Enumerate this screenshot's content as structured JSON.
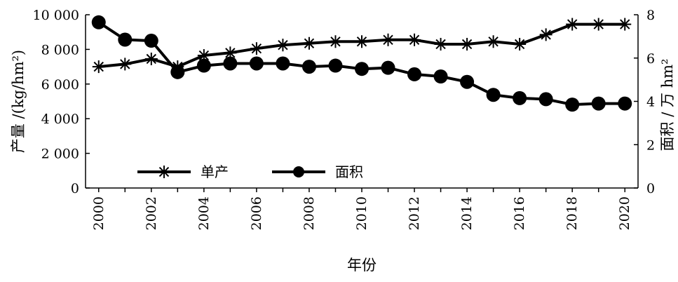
{
  "chart_data": {
    "type": "line",
    "xlabel": "年份",
    "ylabel_left": "产量 /(kg/hm²)",
    "ylabel_right": "面积 / 万 hm²",
    "x": [
      2000,
      2001,
      2002,
      2003,
      2004,
      2005,
      2006,
      2007,
      2008,
      2009,
      2010,
      2011,
      2012,
      2013,
      2014,
      2015,
      2016,
      2017,
      2018,
      2019,
      2020
    ],
    "x_tick_labels": [
      "2000",
      "2002",
      "2004",
      "2006",
      "2008",
      "2010",
      "2012",
      "2014",
      "2016",
      "2018",
      "2020"
    ],
    "ylim_left": [
      0,
      10000
    ],
    "ylim_right": [
      0,
      8
    ],
    "y_tick_labels_left": [
      "0",
      "2 000",
      "4 000",
      "6 000",
      "8 000",
      "10 000"
    ],
    "y_tick_labels_right": [
      "0",
      "2",
      "4",
      "6",
      "8"
    ],
    "legend_position": "lower-left (inside plot)",
    "grid": false,
    "series": [
      {
        "name": "单产",
        "axis": "left",
        "marker": "asterisk",
        "values": [
          7000,
          7150,
          7450,
          7000,
          7650,
          7800,
          8050,
          8250,
          8350,
          8450,
          8450,
          8550,
          8550,
          8300,
          8300,
          8450,
          8300,
          8850,
          9450,
          9450,
          9450
        ]
      },
      {
        "name": "面积",
        "axis": "right",
        "marker": "circle",
        "values": [
          7.65,
          6.85,
          6.8,
          5.35,
          5.65,
          5.75,
          5.75,
          5.75,
          5.6,
          5.65,
          5.5,
          5.55,
          5.25,
          5.15,
          4.9,
          4.3,
          4.15,
          4.1,
          3.85,
          3.9,
          3.9
        ]
      }
    ]
  }
}
